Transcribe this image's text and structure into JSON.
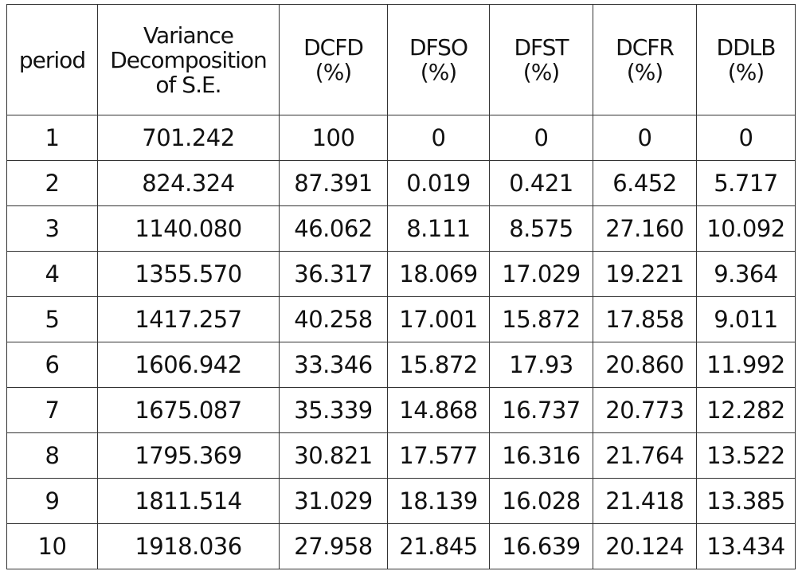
{
  "table": {
    "headers": [
      {
        "lines": [
          "period"
        ]
      },
      {
        "lines": [
          "Variance",
          "Decomposition",
          "of S.E."
        ]
      },
      {
        "lines": [
          "DCFD",
          "(%)"
        ]
      },
      {
        "lines": [
          "DFSO",
          "(%)"
        ]
      },
      {
        "lines": [
          "DFST",
          "(%)"
        ]
      },
      {
        "lines": [
          "DCFR",
          "(%)"
        ]
      },
      {
        "lines": [
          "DDLB",
          "(%)"
        ]
      }
    ],
    "rows": [
      [
        "1",
        "701.242",
        "100",
        "0",
        "0",
        "0",
        "0"
      ],
      [
        "2",
        "824.324",
        "87.391",
        "0.019",
        "0.421",
        "6.452",
        "5.717"
      ],
      [
        "3",
        "1140.080",
        "46.062",
        "8.111",
        "8.575",
        "27.160",
        "10.092"
      ],
      [
        "4",
        "1355.570",
        "36.317",
        "18.069",
        "17.029",
        "19.221",
        "9.364"
      ],
      [
        "5",
        "1417.257",
        "40.258",
        "17.001",
        "15.872",
        "17.858",
        "9.011"
      ],
      [
        "6",
        "1606.942",
        "33.346",
        "15.872",
        "17.93",
        "20.860",
        "11.992"
      ],
      [
        "7",
        "1675.087",
        "35.339",
        "14.868",
        "16.737",
        "20.773",
        "12.282"
      ],
      [
        "8",
        "1795.369",
        "30.821",
        "17.577",
        "16.316",
        "21.764",
        "13.522"
      ],
      [
        "9",
        "1811.514",
        "31.029",
        "18.139",
        "16.028",
        "21.418",
        "13.385"
      ],
      [
        "10",
        "1918.036",
        "27.958",
        "21.845",
        "16.639",
        "20.124",
        "13.434"
      ]
    ]
  }
}
